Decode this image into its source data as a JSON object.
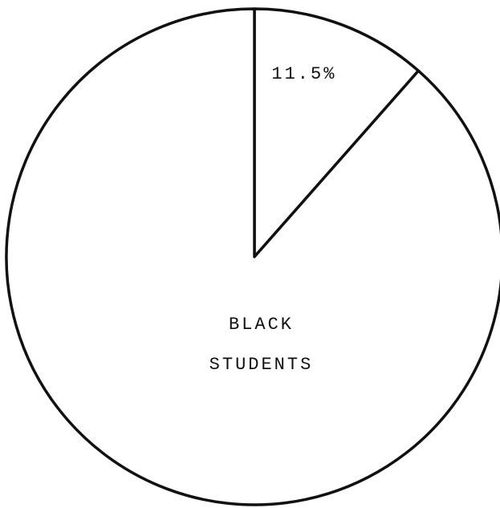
{
  "chart_data": {
    "type": "pie",
    "categories": [
      null,
      "BLACK STUDENTS"
    ],
    "values": [
      11.5,
      88.5
    ],
    "value_labels": [
      "11.5%",
      null
    ],
    "colors": [
      "#ffffff",
      "#ffffff"
    ]
  }
}
